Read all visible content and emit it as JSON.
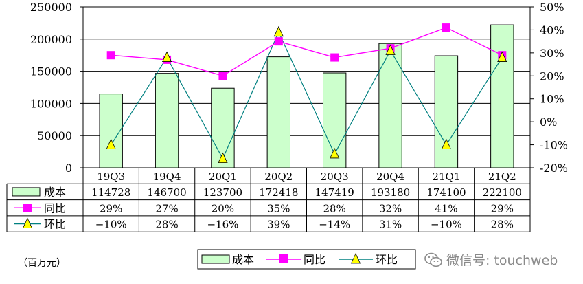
{
  "chart_data": {
    "type": "bar",
    "categories": [
      "19Q3",
      "19Q4",
      "20Q1",
      "20Q2",
      "20Q3",
      "20Q4",
      "21Q1",
      "21Q2"
    ],
    "series": [
      {
        "name": "成本",
        "type": "bar",
        "axis": "left",
        "values": [
          114728,
          146700,
          123700,
          172418,
          147419,
          193180,
          174100,
          222100
        ],
        "color": "#ccffcc"
      },
      {
        "name": "同比",
        "type": "line",
        "axis": "right",
        "values": [
          29,
          27,
          20,
          35,
          28,
          32,
          41,
          29
        ],
        "color": "#ff00ff"
      },
      {
        "name": "环比",
        "type": "line",
        "axis": "right",
        "values": [
          -10,
          28,
          -16,
          39,
          -14,
          31,
          -10,
          28
        ],
        "color": "#008080"
      }
    ],
    "table": {
      "rows": [
        {
          "label": "成本",
          "cells": [
            "114728",
            "146700",
            "123700",
            "172418",
            "147419",
            "193180",
            "174100",
            "222100"
          ]
        },
        {
          "label": "同比",
          "cells": [
            "29%",
            "27%",
            "20%",
            "35%",
            "28%",
            "32%",
            "41%",
            "29%"
          ]
        },
        {
          "label": "环比",
          "cells": [
            "−10%",
            "28%",
            "−16%",
            "39%",
            "−14%",
            "31%",
            "−10%",
            "28%"
          ]
        }
      ]
    },
    "y_left": {
      "ylim": [
        0,
        250000
      ],
      "ticks": [
        "250000",
        "200000",
        "150000",
        "100000",
        "50000",
        "0"
      ]
    },
    "y_right": {
      "ylim": [
        -20,
        50
      ],
      "ticks": [
        "50%",
        "40%",
        "30%",
        "20%",
        "10%",
        "0%",
        "-10%",
        "-20%"
      ]
    },
    "legend": [
      "成本",
      "同比",
      "环比"
    ],
    "legend_position": "bottom-center",
    "unit_label": "（百万元）"
  },
  "watermark": "微信号: touchweb"
}
